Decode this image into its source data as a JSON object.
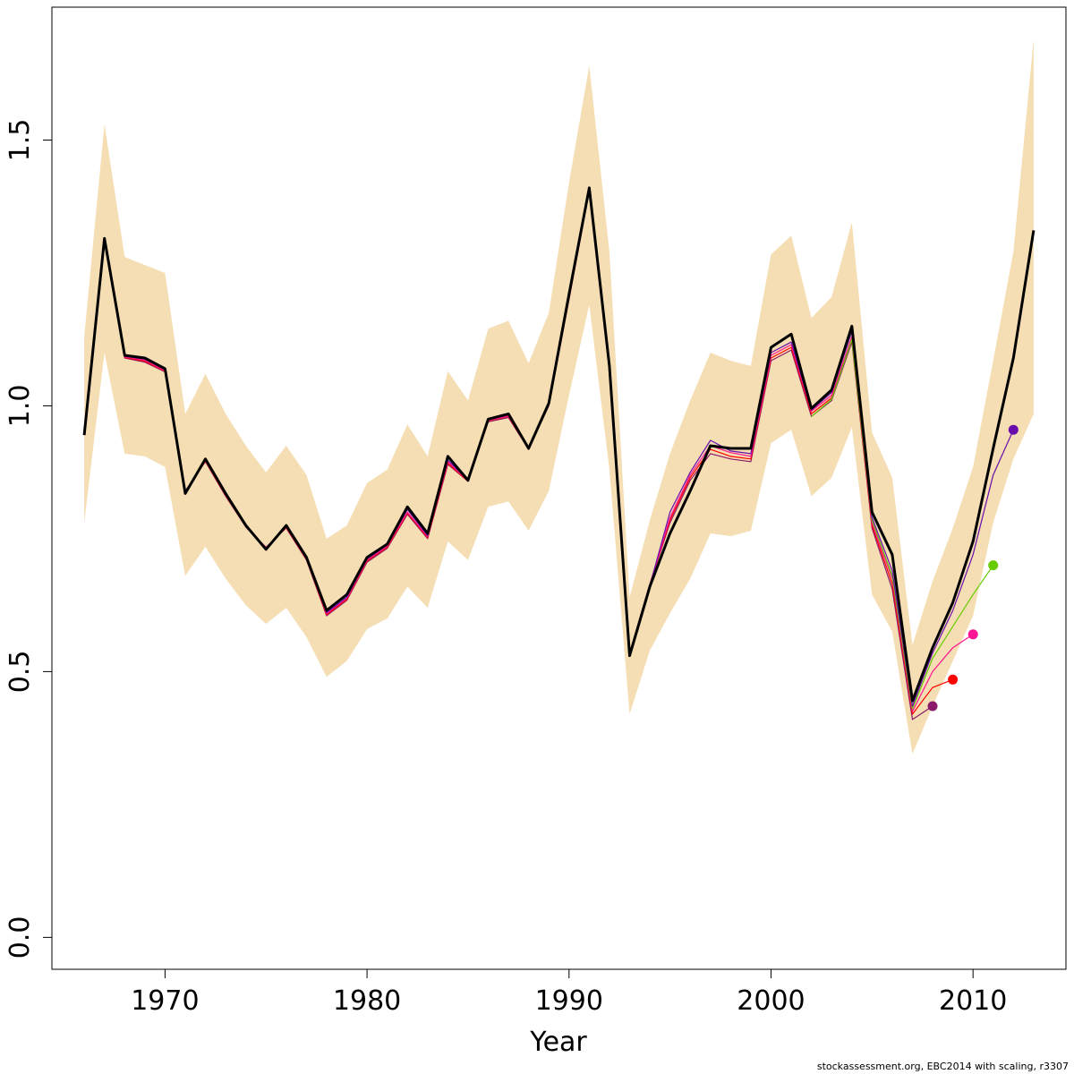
{
  "chart_data": {
    "type": "line",
    "title": "",
    "xlabel": "Year",
    "ylabel": "",
    "xlim": [
      1964.4,
      2014.6
    ],
    "ylim": [
      -0.06,
      1.75
    ],
    "x_ticks": [
      1970,
      1980,
      1990,
      2000,
      2010
    ],
    "y_ticks": [
      0.0,
      0.5,
      1.0,
      1.5
    ],
    "y_tick_labels": [
      "0.0",
      "0.5",
      "1.0",
      "1.5"
    ],
    "grid": false,
    "legend": "none",
    "colors": {
      "band": "#f5deb3",
      "main": "#000000",
      "retro_2008": "#8b1a6b",
      "retro_2009": "#ff0000",
      "retro_2010": "#ff1493",
      "retro_2011": "#66cc00",
      "retro_2012": "#6a0dad"
    },
    "confidence_band": {
      "x": [
        1966,
        1967,
        1968,
        1969,
        1970,
        1971,
        1972,
        1973,
        1974,
        1975,
        1976,
        1977,
        1978,
        1979,
        1980,
        1981,
        1982,
        1983,
        1984,
        1985,
        1986,
        1987,
        1988,
        1989,
        1990,
        1991,
        1992,
        1993,
        1994,
        1995,
        1996,
        1997,
        1998,
        1999,
        2000,
        2001,
        2002,
        2003,
        2004,
        2005,
        2006,
        2007,
        2008,
        2009,
        2010,
        2011,
        2012,
        2013
      ],
      "lower": [
        0.78,
        1.1,
        0.91,
        0.905,
        0.885,
        0.68,
        0.735,
        0.675,
        0.625,
        0.59,
        0.62,
        0.565,
        0.49,
        0.52,
        0.58,
        0.6,
        0.66,
        0.62,
        0.745,
        0.71,
        0.81,
        0.82,
        0.765,
        0.84,
        1.02,
        1.19,
        0.88,
        0.42,
        0.54,
        0.61,
        0.675,
        0.76,
        0.755,
        0.765,
        0.93,
        0.955,
        0.83,
        0.865,
        0.96,
        0.645,
        0.575,
        0.345,
        0.435,
        0.52,
        0.605,
        0.78,
        0.9,
        0.985
      ],
      "upper": [
        1.13,
        1.53,
        1.28,
        1.265,
        1.25,
        0.985,
        1.06,
        0.985,
        0.925,
        0.875,
        0.925,
        0.87,
        0.75,
        0.775,
        0.855,
        0.88,
        0.965,
        0.905,
        1.065,
        1.01,
        1.145,
        1.16,
        1.08,
        1.175,
        1.42,
        1.64,
        1.29,
        0.64,
        0.785,
        0.91,
        1.01,
        1.1,
        1.085,
        1.075,
        1.285,
        1.32,
        1.165,
        1.205,
        1.345,
        0.95,
        0.865,
        0.55,
        0.67,
        0.77,
        0.885,
        1.085,
        1.29,
        1.69
      ]
    },
    "series": [
      {
        "x": [
          1966,
          1967,
          1968,
          1969,
          1970,
          1971,
          1972,
          1973,
          1974,
          1975,
          1976,
          1977,
          1978,
          1979,
          1980,
          1981,
          1982,
          1983,
          1984,
          1985,
          1986,
          1987,
          1988,
          1989,
          1990,
          1991,
          1992,
          1993,
          1994,
          1995,
          1996,
          1997,
          1998,
          1999,
          2000,
          2001,
          2002,
          2003,
          2004,
          2005,
          2006,
          2007,
          2008,
          2009,
          2010,
          2011,
          2012,
          2013
        ],
        "values": [
          0.945,
          1.315,
          1.095,
          1.09,
          1.07,
          0.835,
          0.9,
          0.835,
          0.775,
          0.73,
          0.775,
          0.715,
          0.615,
          0.645,
          0.715,
          0.74,
          0.81,
          0.76,
          0.905,
          0.86,
          0.975,
          0.985,
          0.92,
          1.005,
          1.21,
          1.41,
          1.075,
          0.53,
          0.66,
          0.76,
          0.84,
          0.925,
          0.92,
          0.92,
          1.11,
          1.135,
          0.995,
          1.03,
          1.15,
          0.8,
          0.72,
          0.445,
          0.545,
          0.63,
          0.745,
          0.92,
          1.09,
          1.33
        ],
        "color": "#000000",
        "width": 3
      },
      {
        "x": [
          1966,
          1967,
          1968,
          1969,
          1970,
          1971,
          1972,
          1973,
          1974,
          1975,
          1976,
          1977,
          1978,
          1979,
          1980,
          1981,
          1982,
          1983,
          1984,
          1985,
          1986,
          1987,
          1988,
          1989,
          1990,
          1991,
          1992,
          1993,
          1994,
          1995,
          1996,
          1997,
          1998,
          1999,
          2000,
          2001,
          2002,
          2003,
          2004,
          2005,
          2006,
          2007,
          2008
        ],
        "values": [
          0.945,
          1.31,
          1.09,
          1.082,
          1.064,
          0.84,
          0.895,
          0.83,
          0.772,
          0.734,
          0.77,
          0.71,
          0.605,
          0.634,
          0.706,
          0.732,
          0.796,
          0.75,
          0.89,
          0.858,
          0.97,
          0.978,
          0.918,
          1.0,
          1.2,
          1.405,
          1.065,
          0.535,
          0.665,
          0.78,
          0.86,
          0.91,
          0.9,
          0.895,
          1.085,
          1.105,
          0.98,
          1.01,
          1.12,
          0.77,
          0.655,
          0.41,
          0.435
        ],
        "color": "#8b1a6b",
        "width": 1.2,
        "end_point": {
          "x": 2008,
          "y": 0.435
        }
      },
      {
        "x": [
          1966,
          1967,
          1968,
          1969,
          1970,
          1971,
          1972,
          1973,
          1974,
          1975,
          1976,
          1977,
          1978,
          1979,
          1980,
          1981,
          1982,
          1983,
          1984,
          1985,
          1986,
          1987,
          1988,
          1989,
          1990,
          1991,
          1992,
          1993,
          1994,
          1995,
          1996,
          1997,
          1998,
          1999,
          2000,
          2001,
          2002,
          2003,
          2004,
          2005,
          2006,
          2007,
          2008,
          2009
        ],
        "values": [
          0.945,
          1.312,
          1.091,
          1.084,
          1.065,
          0.838,
          0.896,
          0.831,
          0.773,
          0.733,
          0.771,
          0.711,
          0.607,
          0.636,
          0.708,
          0.734,
          0.798,
          0.752,
          0.892,
          0.858,
          0.972,
          0.98,
          0.918,
          1.002,
          1.202,
          1.406,
          1.068,
          0.533,
          0.664,
          0.785,
          0.865,
          0.918,
          0.905,
          0.9,
          1.09,
          1.11,
          0.985,
          1.015,
          1.125,
          0.775,
          0.665,
          0.42,
          0.47,
          0.485
        ],
        "color": "#ff0000",
        "width": 1.2,
        "end_point": {
          "x": 2009,
          "y": 0.485
        }
      },
      {
        "x": [
          1966,
          1967,
          1968,
          1969,
          1970,
          1971,
          1972,
          1973,
          1974,
          1975,
          1976,
          1977,
          1978,
          1979,
          1980,
          1981,
          1982,
          1983,
          1984,
          1985,
          1986,
          1987,
          1988,
          1989,
          1990,
          1991,
          1992,
          1993,
          1994,
          1995,
          1996,
          1997,
          1998,
          1999,
          2000,
          2001,
          2002,
          2003,
          2004,
          2005,
          2006,
          2007,
          2008,
          2009,
          2010
        ],
        "values": [
          0.945,
          1.313,
          1.092,
          1.086,
          1.066,
          0.837,
          0.897,
          0.832,
          0.774,
          0.733,
          0.772,
          0.712,
          0.609,
          0.638,
          0.71,
          0.736,
          0.8,
          0.754,
          0.895,
          0.859,
          0.973,
          0.981,
          0.919,
          1.003,
          1.204,
          1.407,
          1.07,
          0.532,
          0.663,
          0.79,
          0.87,
          0.925,
          0.912,
          0.905,
          1.095,
          1.115,
          0.99,
          1.02,
          1.13,
          0.78,
          0.675,
          0.425,
          0.5,
          0.545,
          0.57
        ],
        "color": "#ff1493",
        "width": 1.2,
        "end_point": {
          "x": 2010,
          "y": 0.57
        }
      },
      {
        "x": [
          2002,
          2003,
          2004,
          2005,
          2006,
          2007,
          2008,
          2009,
          2010,
          2011
        ],
        "values": [
          0.98,
          1.012,
          1.125,
          0.785,
          0.68,
          0.43,
          0.525,
          0.585,
          0.645,
          0.7
        ],
        "color": "#66cc00",
        "width": 1.2,
        "end_point": {
          "x": 2011,
          "y": 0.7
        }
      },
      {
        "x": [
          1966,
          1967,
          1968,
          1969,
          1970,
          1971,
          1972,
          1973,
          1974,
          1975,
          1976,
          1977,
          1978,
          1979,
          1980,
          1981,
          1982,
          1983,
          1984,
          1985,
          1986,
          1987,
          1988,
          1989,
          1990,
          1991,
          1992,
          1993,
          1994,
          1995,
          1996,
          1997,
          1998,
          1999,
          2000,
          2001,
          2002,
          2003,
          2004,
          2005,
          2006,
          2007,
          2008,
          2009,
          2010,
          2011,
          2012
        ],
        "values": [
          0.945,
          1.314,
          1.093,
          1.088,
          1.068,
          0.836,
          0.898,
          0.833,
          0.775,
          0.732,
          0.773,
          0.713,
          0.611,
          0.64,
          0.712,
          0.738,
          0.805,
          0.756,
          0.898,
          0.86,
          0.974,
          0.983,
          0.92,
          1.004,
          1.206,
          1.408,
          1.072,
          0.531,
          0.662,
          0.8,
          0.875,
          0.935,
          0.915,
          0.91,
          1.1,
          1.12,
          0.992,
          1.025,
          1.14,
          0.79,
          0.69,
          0.435,
          0.535,
          0.615,
          0.72,
          0.87,
          0.955
        ],
        "color": "#6a0dad",
        "width": 1.2,
        "end_point": {
          "x": 2012,
          "y": 0.955
        }
      }
    ]
  },
  "footer": {
    "note": "stockassessment.org, EBC2014  with  scaling, r3307"
  }
}
